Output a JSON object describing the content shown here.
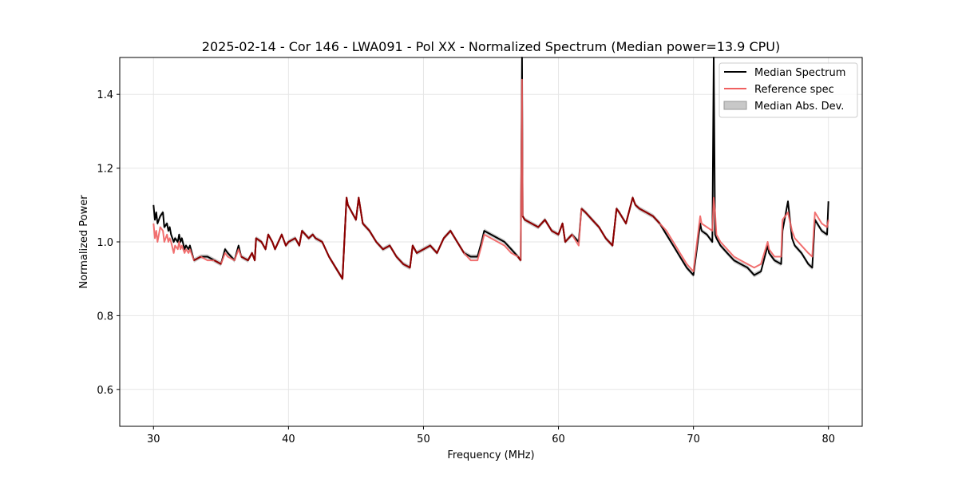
{
  "chart_data": {
    "type": "line",
    "title": "2025-02-14 - Cor 146 - LWA091 - Pol XX - Normalized Spectrum (Median power=13.9 CPU)",
    "xlabel": "Frequency (MHz)",
    "ylabel": "Normalized Power",
    "xlim": [
      27.5,
      82.5
    ],
    "ylim": [
      0.5,
      1.5
    ],
    "xticks": [
      30,
      40,
      50,
      60,
      70,
      80
    ],
    "yticks": [
      0.6,
      0.8,
      1.0,
      1.2,
      1.4
    ],
    "xtick_labels": [
      "30",
      "40",
      "50",
      "60",
      "70",
      "80"
    ],
    "ytick_labels": [
      "0.6",
      "0.8",
      "1.0",
      "1.2",
      "1.4"
    ],
    "grid": true,
    "legend_position": "top-right",
    "legend": [
      "Median Spectrum",
      "Reference spec",
      "Median Abs. Dev."
    ],
    "colors": {
      "median": "#000000",
      "reference": "#f06060",
      "band": "#aaaaaa",
      "overlap": "#8b0000"
    },
    "series": [
      {
        "name": "Median Spectrum",
        "x": [
          30.0,
          30.1,
          30.2,
          30.3,
          30.5,
          30.7,
          30.8,
          31.0,
          31.1,
          31.2,
          31.3,
          31.5,
          31.6,
          31.8,
          31.9,
          32.0,
          32.1,
          32.3,
          32.4,
          32.6,
          32.7,
          33.0,
          33.5,
          34.0,
          34.5,
          35.0,
          35.3,
          35.5,
          36.0,
          36.3,
          36.5,
          37.0,
          37.3,
          37.5,
          37.6,
          38.0,
          38.3,
          38.5,
          38.8,
          39.0,
          39.5,
          39.8,
          40.0,
          40.5,
          40.8,
          41.0,
          41.5,
          41.8,
          42.0,
          42.5,
          43.0,
          43.5,
          44.0,
          44.3,
          44.4,
          45.0,
          45.2,
          45.5,
          46.0,
          46.5,
          47.0,
          47.5,
          48.0,
          48.5,
          49.0,
          49.2,
          49.5,
          50.0,
          50.5,
          51.0,
          51.5,
          52.0,
          52.5,
          53.0,
          53.5,
          54.0,
          54.3,
          54.5,
          55.0,
          55.5,
          56.0,
          56.5,
          57.0,
          57.2,
          57.3,
          57.35,
          57.5,
          58.0,
          58.5,
          59.0,
          59.5,
          60.0,
          60.3,
          60.5,
          61.0,
          61.5,
          61.7,
          62.0,
          62.5,
          63.0,
          63.5,
          64.0,
          64.3,
          64.5,
          65.0,
          65.5,
          65.7,
          66.0,
          66.5,
          67.0,
          67.5,
          68.0,
          68.5,
          69.0,
          69.5,
          70.0,
          70.5,
          70.6,
          71.0,
          71.4,
          71.5,
          71.6,
          71.7,
          72.0,
          72.5,
          73.0,
          73.5,
          74.0,
          74.5,
          75.0,
          75.5,
          75.6,
          76.0,
          76.5,
          76.6,
          77.0,
          77.3,
          77.5,
          78.0,
          78.5,
          78.8,
          79.0,
          79.5,
          79.9,
          80.0
        ],
        "y": [
          1.1,
          1.06,
          1.08,
          1.05,
          1.07,
          1.08,
          1.04,
          1.05,
          1.03,
          1.04,
          1.02,
          1.0,
          1.01,
          1.0,
          1.02,
          1.0,
          1.01,
          0.98,
          0.99,
          0.98,
          0.99,
          0.95,
          0.96,
          0.96,
          0.95,
          0.94,
          0.98,
          0.97,
          0.95,
          0.99,
          0.96,
          0.95,
          0.97,
          0.95,
          1.01,
          1.0,
          0.98,
          1.02,
          1.0,
          0.98,
          1.02,
          0.99,
          1.0,
          1.01,
          0.99,
          1.03,
          1.01,
          1.02,
          1.01,
          1.0,
          0.96,
          0.93,
          0.9,
          1.12,
          1.1,
          1.06,
          1.12,
          1.05,
          1.03,
          1.0,
          0.98,
          0.99,
          0.96,
          0.94,
          0.93,
          0.99,
          0.97,
          0.98,
          0.99,
          0.97,
          1.01,
          1.03,
          1.0,
          0.97,
          0.96,
          0.96,
          1.0,
          1.03,
          1.02,
          1.01,
          1.0,
          0.98,
          0.96,
          0.95,
          1.5,
          1.07,
          1.06,
          1.05,
          1.04,
          1.06,
          1.03,
          1.02,
          1.05,
          1.0,
          1.02,
          1.0,
          1.09,
          1.08,
          1.06,
          1.04,
          1.01,
          0.99,
          1.09,
          1.08,
          1.05,
          1.12,
          1.1,
          1.09,
          1.08,
          1.07,
          1.05,
          1.02,
          0.99,
          0.96,
          0.93,
          0.91,
          1.05,
          1.03,
          1.02,
          1.0,
          1.5,
          1.02,
          1.01,
          0.99,
          0.97,
          0.95,
          0.94,
          0.93,
          0.91,
          0.92,
          0.99,
          0.97,
          0.95,
          0.94,
          1.03,
          1.11,
          1.01,
          0.99,
          0.97,
          0.94,
          0.93,
          1.06,
          1.03,
          1.02,
          1.11
        ]
      },
      {
        "name": "Reference spec",
        "x": [
          30.0,
          30.1,
          30.2,
          30.3,
          30.5,
          30.7,
          30.8,
          31.0,
          31.1,
          31.2,
          31.3,
          31.5,
          31.6,
          31.8,
          31.9,
          32.0,
          32.1,
          32.3,
          32.4,
          32.6,
          32.7,
          33.0,
          33.5,
          34.0,
          34.5,
          35.0,
          35.3,
          35.5,
          36.0,
          36.3,
          36.5,
          37.0,
          37.3,
          37.5,
          37.6,
          38.0,
          38.3,
          38.5,
          38.8,
          39.0,
          39.5,
          39.8,
          40.0,
          40.5,
          40.8,
          41.0,
          41.5,
          41.8,
          42.0,
          42.5,
          43.0,
          43.5,
          44.0,
          44.3,
          44.4,
          45.0,
          45.2,
          45.5,
          46.0,
          46.5,
          47.0,
          47.5,
          48.0,
          48.5,
          49.0,
          49.2,
          49.5,
          50.0,
          50.5,
          51.0,
          51.5,
          52.0,
          52.5,
          53.0,
          53.5,
          54.0,
          54.3,
          54.5,
          55.0,
          55.5,
          56.0,
          56.5,
          57.0,
          57.2,
          57.3,
          57.35,
          57.5,
          58.0,
          58.5,
          59.0,
          59.5,
          60.0,
          60.3,
          60.5,
          61.0,
          61.5,
          61.7,
          62.0,
          62.5,
          63.0,
          63.5,
          64.0,
          64.3,
          64.5,
          65.0,
          65.5,
          65.7,
          66.0,
          66.5,
          67.0,
          67.5,
          68.0,
          68.5,
          69.0,
          69.5,
          70.0,
          70.5,
          70.6,
          71.0,
          71.4,
          71.5,
          71.6,
          71.7,
          72.0,
          72.5,
          73.0,
          73.5,
          74.0,
          74.5,
          75.0,
          75.5,
          75.6,
          76.0,
          76.5,
          76.6,
          77.0,
          77.3,
          77.5,
          78.0,
          78.5,
          78.8,
          79.0,
          79.5,
          79.9,
          80.0
        ],
        "y": [
          1.05,
          1.01,
          1.03,
          1.0,
          1.04,
          1.03,
          1.0,
          1.02,
          1.0,
          1.01,
          1.0,
          0.97,
          0.99,
          0.98,
          1.0,
          0.98,
          0.99,
          0.97,
          0.98,
          0.97,
          0.98,
          0.95,
          0.96,
          0.95,
          0.95,
          0.94,
          0.97,
          0.96,
          0.95,
          0.98,
          0.96,
          0.95,
          0.97,
          0.95,
          1.01,
          1.0,
          0.98,
          1.02,
          1.0,
          0.98,
          1.02,
          0.99,
          1.0,
          1.01,
          0.99,
          1.03,
          1.01,
          1.02,
          1.01,
          1.0,
          0.96,
          0.93,
          0.9,
          1.12,
          1.1,
          1.06,
          1.12,
          1.05,
          1.03,
          1.0,
          0.98,
          0.99,
          0.96,
          0.94,
          0.93,
          0.99,
          0.97,
          0.98,
          0.99,
          0.97,
          1.01,
          1.03,
          1.0,
          0.97,
          0.95,
          0.95,
          0.99,
          1.02,
          1.01,
          1.0,
          0.99,
          0.97,
          0.96,
          0.95,
          1.44,
          1.07,
          1.06,
          1.05,
          1.04,
          1.06,
          1.03,
          1.02,
          1.05,
          1.0,
          1.02,
          0.99,
          1.09,
          1.08,
          1.06,
          1.04,
          1.01,
          0.99,
          1.09,
          1.08,
          1.05,
          1.12,
          1.1,
          1.09,
          1.08,
          1.07,
          1.05,
          1.03,
          1.0,
          0.97,
          0.94,
          0.92,
          1.07,
          1.05,
          1.04,
          1.03,
          1.12,
          1.08,
          1.02,
          1.0,
          0.98,
          0.96,
          0.95,
          0.94,
          0.93,
          0.94,
          1.0,
          0.98,
          0.96,
          0.96,
          1.06,
          1.08,
          1.03,
          1.01,
          0.99,
          0.97,
          0.96,
          1.08,
          1.05,
          1.04,
          1.06
        ]
      }
    ]
  }
}
